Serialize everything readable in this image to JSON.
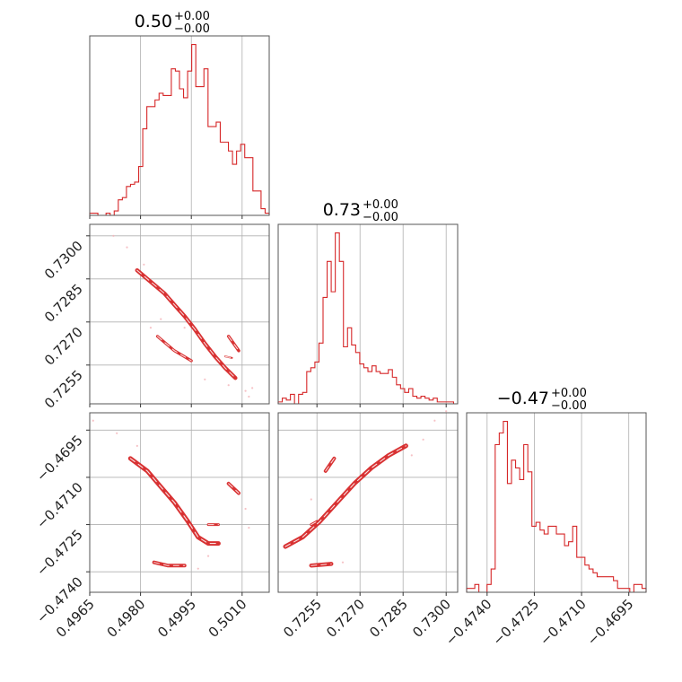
{
  "chart_data": {
    "type": "corner",
    "color": "#d62728",
    "titles": [
      {
        "main": "0.50",
        "plus": "+0.00",
        "minus": "−0.00"
      },
      {
        "main": "0.73",
        "plus": "+0.00",
        "minus": "−0.00"
      },
      {
        "main": "−0.47",
        "plus": "+0.00",
        "minus": "−0.00"
      }
    ],
    "params": [
      {
        "range": [
          0.4965,
          0.5018
        ],
        "ticks": [
          0.4965,
          0.498,
          0.4995,
          0.501
        ],
        "tick_labels": [
          "0.4965",
          "0.4980",
          "0.4995",
          "0.5010"
        ]
      },
      {
        "range": [
          0.72415,
          0.7304
        ],
        "ticks": [
          0.7255,
          0.727,
          0.7285,
          0.73
        ],
        "tick_labels": [
          "0.7255",
          "0.7270",
          "0.7285",
          "0.7300"
        ]
      },
      {
        "range": [
          -0.47465,
          -0.46895
        ],
        "ticks": [
          -0.474,
          -0.4725,
          -0.471,
          -0.4695
        ],
        "tick_labels": [
          "−0.4740",
          "−0.4725",
          "−0.4710",
          "−0.4695"
        ]
      }
    ],
    "histograms": [
      [
        1,
        1,
        0,
        0,
        1,
        0,
        2,
        7,
        8,
        13,
        14,
        15,
        22,
        39,
        49,
        49,
        52,
        55,
        54,
        54,
        66,
        65,
        57,
        53,
        65,
        77,
        58,
        58,
        66,
        40,
        40,
        42,
        33,
        33,
        29,
        23,
        29,
        32,
        26,
        26,
        11,
        11,
        3,
        1
      ],
      [
        1,
        3,
        2,
        5,
        0,
        5,
        6,
        17,
        19,
        22,
        32,
        56,
        75,
        59,
        90,
        75,
        30,
        40,
        31,
        27,
        21,
        19,
        17,
        20,
        17,
        16,
        16,
        18,
        14,
        10,
        8,
        6,
        8,
        4,
        3,
        4,
        3,
        2,
        3,
        1,
        1,
        1,
        1,
        0
      ],
      [
        1,
        1,
        2,
        0,
        0,
        2,
        6,
        38,
        41,
        44,
        28,
        34,
        32,
        29,
        38,
        31,
        17,
        18,
        16,
        15,
        17,
        17,
        15,
        15,
        12,
        13,
        17,
        9,
        9,
        7,
        6,
        5,
        4,
        4,
        4,
        4,
        3,
        1,
        1,
        1,
        0,
        2,
        2,
        1
      ]
    ],
    "hist_max": [
      77,
      90,
      44
    ],
    "scatter_samples": [
      {
        "x": 0.4973,
        "y": 0.7299
      },
      {
        "x": 0.4978,
        "y": 0.7292
      },
      {
        "x": 0.4985,
        "y": 0.7279
      },
      {
        "x": 0.4992,
        "y": 0.7266
      },
      {
        "x": 0.4999,
        "y": 0.7254
      },
      {
        "x": 0.5007,
        "y": 0.7246
      },
      {
        "x": 0.4982,
        "y": 0.7268
      },
      {
        "x": 0.5011,
        "y": 0.7246
      }
    ],
    "grid": true
  }
}
